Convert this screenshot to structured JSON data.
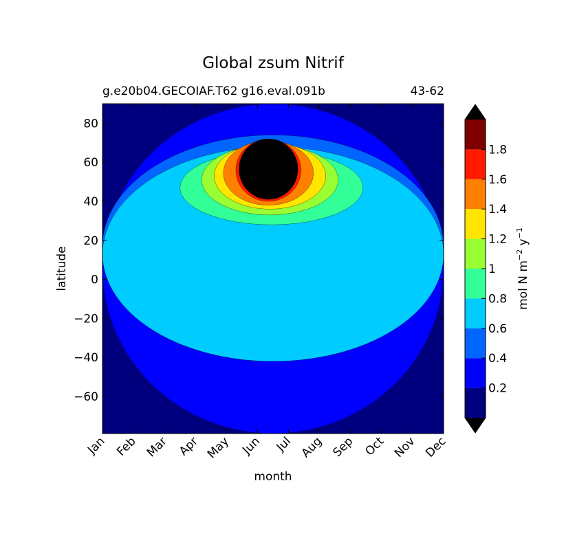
{
  "chart_data": {
    "type": "heatmap",
    "title": "Global zsum Nitrif",
    "subtitle_left": "g.e20b04.GECOIAF.T62 g16.eval.091b",
    "subtitle_right": "43-62",
    "xlabel": "month",
    "ylabel": "latitude",
    "x_categories": [
      "Jan",
      "Feb",
      "Mar",
      "Apr",
      "May",
      "Jun",
      "Jul",
      "Aug",
      "Sep",
      "Oct",
      "Nov",
      "Dec"
    ],
    "ylim": [
      -79,
      90
    ],
    "y_ticks": [
      80,
      60,
      40,
      20,
      0,
      -20,
      -40,
      -60
    ],
    "y_tick_labels": [
      "80",
      "60",
      "40",
      "20",
      "0",
      "−20",
      "−40",
      "−60"
    ],
    "colorbar": {
      "label": "mol N m⁻² y⁻¹",
      "label_parts": {
        "base1": "mol N m",
        "sup1": "−2",
        "base2": " y",
        "sup2": "−1"
      },
      "levels": [
        0,
        0.2,
        0.4,
        0.6,
        0.8,
        1.0,
        1.2,
        1.4,
        1.6,
        1.8,
        2.0
      ],
      "tick_values": [
        0.2,
        0.4,
        0.6,
        0.8,
        1.0,
        1.2,
        1.4,
        1.6,
        1.8
      ],
      "tick_labels": [
        "0.2",
        "0.4",
        "0.6",
        "0.8",
        "1",
        "1.2",
        "1.4",
        "1.6",
        "1.8"
      ],
      "colors": [
        "#00007f",
        "#0000ff",
        "#0066ff",
        "#00ccff",
        "#33ff99",
        "#99ff33",
        "#ffe500",
        "#ff7f00",
        "#ff1a00",
        "#7f0000"
      ],
      "under_color": "#000000",
      "over_color": "#000000",
      "extend": "both"
    },
    "plot_background": "#00007f",
    "regions": [
      {
        "level": 1,
        "month": [
          0.0,
          11.0
        ],
        "lat": [
          -79,
          90
        ],
        "note": "0.2-0.4 band"
      },
      {
        "level": 2,
        "month": [
          0.0,
          11.0
        ],
        "lat": [
          -40,
          74
        ]
      },
      {
        "level": 3,
        "month": [
          0.0,
          11.0
        ],
        "lat": [
          -42,
          68
        ]
      },
      {
        "level": 4,
        "month": [
          2.5,
          8.4
        ],
        "lat": [
          28,
          66
        ]
      },
      {
        "level": 5,
        "month": [
          3.2,
          7.6
        ],
        "lat": [
          33,
          69
        ]
      },
      {
        "level": 6,
        "month": [
          3.6,
          7.2
        ],
        "lat": [
          36,
          70
        ]
      },
      {
        "level": 7,
        "month": [
          3.9,
          6.8
        ],
        "lat": [
          38,
          71
        ]
      },
      {
        "level": 8,
        "month": [
          4.3,
          6.4
        ],
        "lat": [
          40,
          72
        ]
      },
      {
        "level": 10,
        "month": [
          4.4,
          6.3
        ],
        "lat": [
          41,
          72
        ]
      }
    ]
  }
}
